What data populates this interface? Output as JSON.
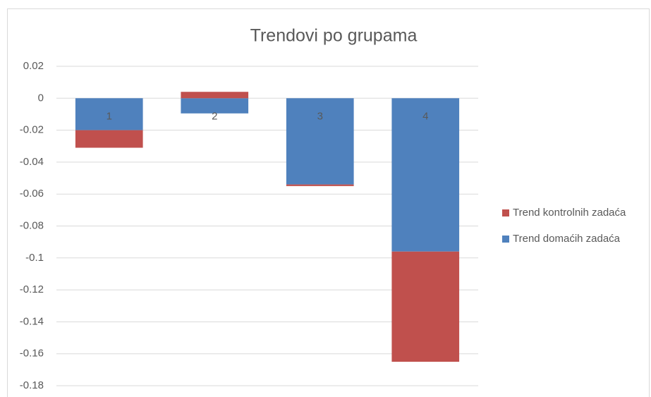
{
  "chart_data": {
    "type": "stacked_bar",
    "title": "Trendovi po grupama",
    "categories": [
      "1",
      "2",
      "3",
      "4"
    ],
    "series": [
      {
        "name": "Trend domaćih zadaća",
        "color": "#4f81bd",
        "values": [
          -0.02,
          -0.0095,
          -0.054,
          -0.096
        ]
      },
      {
        "name": "Trend kontrolnih zadaća",
        "color": "#c0504d",
        "values": [
          -0.011,
          0.004,
          -0.001,
          -0.069
        ]
      }
    ],
    "ylim": [
      -0.18,
      0.02
    ],
    "yticks": [
      0.02,
      0,
      -0.02,
      -0.04,
      -0.06,
      -0.08,
      -0.1,
      -0.12,
      -0.14,
      -0.16,
      -0.18
    ],
    "grid": true,
    "legend": "right"
  }
}
